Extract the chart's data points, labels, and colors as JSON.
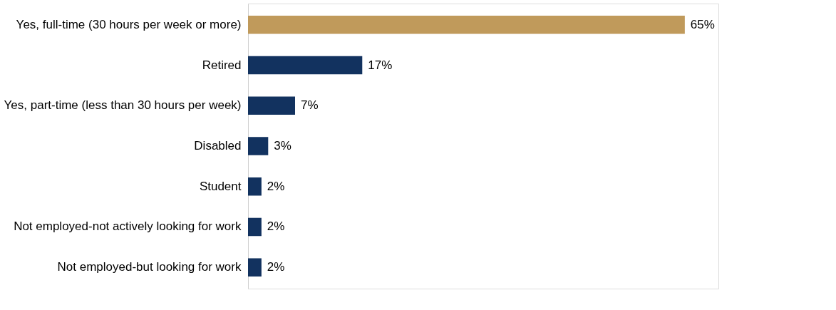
{
  "chart_data": {
    "type": "bar",
    "orientation": "horizontal",
    "categories": [
      "Yes, full-time (30 hours per week or more)",
      "Retired",
      "Yes, part-time (less than 30 hours per week)",
      "Disabled",
      "Student",
      "Not employed-not actively looking for work",
      "Not employed-but looking for work"
    ],
    "values": [
      65,
      17,
      7,
      3,
      2,
      2,
      2
    ],
    "colors": [
      "#c09a5b",
      "#12325f",
      "#12325f",
      "#12325f",
      "#12325f",
      "#12325f",
      "#12325f"
    ],
    "value_labels": [
      "65%",
      "17%",
      "7%",
      "3%",
      "2%",
      "2%",
      "2%"
    ],
    "xlim": [
      0,
      70
    ],
    "tick_labels": "y"
  }
}
